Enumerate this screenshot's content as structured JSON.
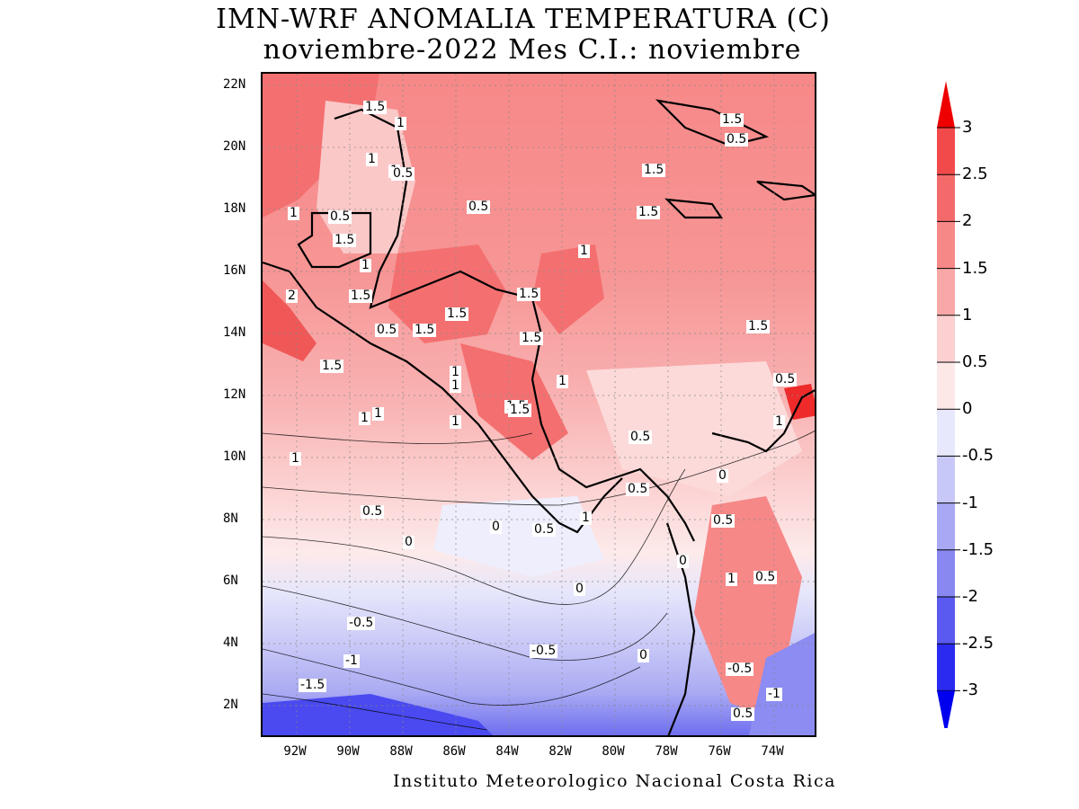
{
  "title": {
    "line1": "IMN-WRF  ANOMALIA TEMPERATURA (C)",
    "line2": "noviembre-2022 Mes C.I.: noviembre"
  },
  "footer": "Instituto Meteorologico Nacional Costa Rica",
  "axes": {
    "y_ticks": [
      "22N",
      "20N",
      "18N",
      "16N",
      "14N",
      "12N",
      "10N",
      "8N",
      "6N",
      "4N",
      "2N"
    ],
    "x_ticks": [
      "92W",
      "90W",
      "88W",
      "86W",
      "84W",
      "82W",
      "80W",
      "78W",
      "76W",
      "74W"
    ]
  },
  "colorbar": {
    "levels": [
      "3",
      "2.5",
      "2",
      "1.5",
      "1",
      "0.5",
      "0",
      "-0.5",
      "-1",
      "-1.5",
      "-2",
      "-2.5",
      "-3"
    ],
    "colors": [
      "#ee0000",
      "#f24a4a",
      "#f46a6a",
      "#f78888",
      "#f9a8a8",
      "#fcd0d0",
      "#fde8e8",
      "#e8e8fc",
      "#c8c8f8",
      "#a8a8f4",
      "#8888f0",
      "#5a5af0",
      "#2a2af0",
      "#0000ee"
    ]
  },
  "contour_labels": [
    "1.5",
    "1",
    "0.5",
    "1",
    "0.5",
    "1",
    "1.5",
    "1",
    "1.5",
    "2",
    "1.5",
    "0.5",
    "1.5",
    "1.5",
    "1",
    "1.5",
    "1",
    "1.5",
    "1.5",
    "0.5",
    "1",
    "0.5",
    "0",
    "0.5",
    "0.5",
    "0",
    "0",
    "0.5",
    "-0.5",
    "0",
    "-0.5",
    "-1",
    "-1.5",
    "0",
    "1",
    "0.5",
    "1",
    "1.5",
    "0.5",
    "-0.5",
    "-1",
    "1",
    "1.5",
    "0.5",
    "1",
    "1",
    "1.5",
    "1",
    "0.5",
    "1.5",
    "1",
    "1",
    "1",
    "0",
    "0.5",
    "1.5"
  ]
}
